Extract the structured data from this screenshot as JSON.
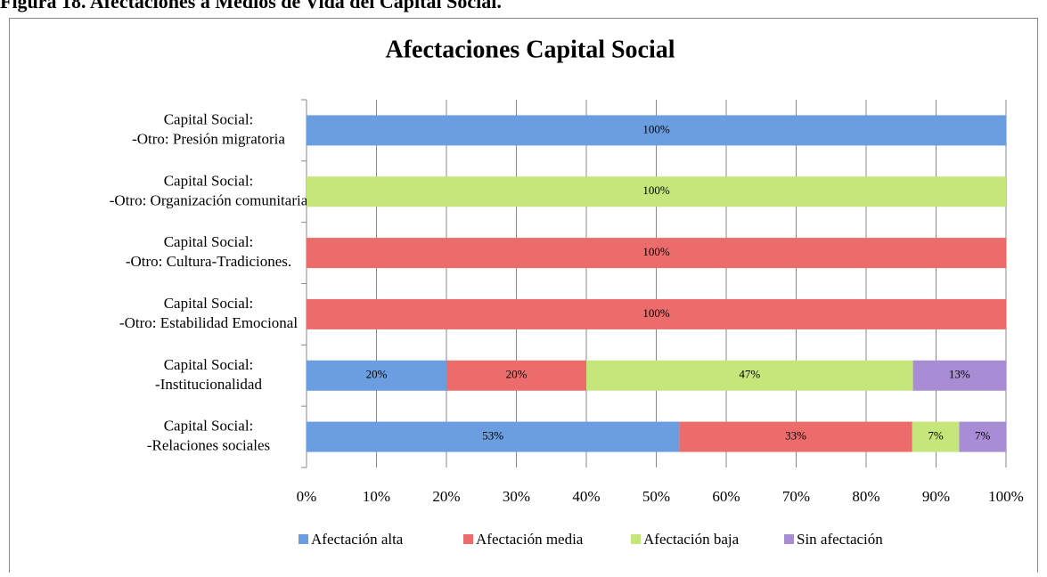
{
  "caption": "Figura 18. Afectaciones a Medios de Vida del Capital Social.",
  "chart_data": {
    "type": "stacked-barh",
    "title": "Afectaciones Capital Social",
    "categories": [
      [
        "Capital Social:",
        "-Relaciones sociales"
      ],
      [
        "Capital Social:",
        "-Institucionalidad"
      ],
      [
        "Capital Social:",
        "-Otro: Estabilidad Emocional"
      ],
      [
        "Capital Social:",
        "-Otro: Cultura-Tradiciones."
      ],
      [
        "Capital Social:",
        "-Otro: Organización comunitaria"
      ],
      [
        "Capital Social:",
        "-Otro: Presión migratoria"
      ]
    ],
    "series": [
      {
        "name": "Afectación alta",
        "color": "#6a9ee0",
        "values": [
          53.3,
          20,
          0,
          0,
          0,
          100
        ],
        "value_labels": [
          "53%",
          "20%",
          null,
          null,
          null,
          "100%"
        ]
      },
      {
        "name": "Afectación media",
        "color": "#ec6b6b",
        "values": [
          33.3,
          20,
          100,
          100,
          0,
          0
        ],
        "value_labels": [
          "33%",
          "20%",
          "100%",
          "100%",
          null,
          null
        ]
      },
      {
        "name": "Afectación baja",
        "color": "#c4e67a",
        "values": [
          6.7,
          46.7,
          0,
          0,
          100,
          0
        ],
        "value_labels": [
          "7%",
          "47%",
          null,
          null,
          "100%",
          null
        ]
      },
      {
        "name": "Sin afectación",
        "color": "#a88cd4",
        "values": [
          6.7,
          13.3,
          0,
          0,
          0,
          0
        ],
        "value_labels": [
          "7%",
          "13%",
          null,
          null,
          null,
          null
        ]
      }
    ],
    "xlim": [
      0,
      100
    ],
    "xticks": [
      {
        "value": 0,
        "label": "0%"
      },
      {
        "value": 10,
        "label": "10%"
      },
      {
        "value": 20,
        "label": "20%"
      },
      {
        "value": 30,
        "label": "30%"
      },
      {
        "value": 40,
        "label": "40%"
      },
      {
        "value": 50,
        "label": "50%"
      },
      {
        "value": 60,
        "label": "60%"
      },
      {
        "value": 70,
        "label": "70%"
      },
      {
        "value": 80,
        "label": "80%"
      },
      {
        "value": 90,
        "label": "90%"
      },
      {
        "value": 100,
        "label": "100%"
      }
    ],
    "grid": true,
    "legend": "bottom"
  }
}
